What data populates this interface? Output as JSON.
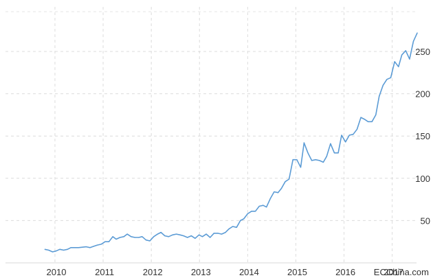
{
  "chart_data": {
    "type": "line",
    "title": "",
    "xlabel": "",
    "ylabel": "",
    "xlim": [
      2009.25,
      2017.5
    ],
    "ylim": [
      0,
      285
    ],
    "grid": true,
    "x_ticks": [
      "2010",
      "2011",
      "2012",
      "2013",
      "2014",
      "2015",
      "2016",
      "2017"
    ],
    "y_ticks": [
      50,
      100,
      150,
      200,
      250
    ],
    "series": [
      {
        "color": "#5b9bd5",
        "points": [
          [
            2009.29,
            16
          ],
          [
            2009.37,
            15
          ],
          [
            2009.45,
            13
          ],
          [
            2009.52,
            14
          ],
          [
            2009.6,
            16
          ],
          [
            2009.68,
            15
          ],
          [
            2009.76,
            16
          ],
          [
            2009.83,
            18
          ],
          [
            2009.91,
            18
          ],
          [
            2009.99,
            18
          ],
          [
            2010.07,
            18.5
          ],
          [
            2010.15,
            19
          ],
          [
            2010.23,
            18
          ],
          [
            2010.3,
            19.5
          ],
          [
            2010.38,
            21
          ],
          [
            2010.46,
            22
          ],
          [
            2010.54,
            25
          ],
          [
            2010.62,
            25
          ],
          [
            2010.7,
            31
          ],
          [
            2010.77,
            28
          ],
          [
            2010.85,
            30
          ],
          [
            2010.93,
            31
          ],
          [
            2011.0,
            34
          ],
          [
            2011.08,
            31
          ],
          [
            2011.16,
            30
          ],
          [
            2011.24,
            30
          ],
          [
            2011.31,
            31
          ],
          [
            2011.39,
            27
          ],
          [
            2011.47,
            26
          ],
          [
            2011.55,
            31
          ],
          [
            2011.63,
            34
          ],
          [
            2011.7,
            36
          ],
          [
            2011.78,
            32
          ],
          [
            2011.86,
            31
          ],
          [
            2011.94,
            33
          ],
          [
            2012.02,
            34
          ],
          [
            2012.1,
            33
          ],
          [
            2012.17,
            32
          ],
          [
            2012.25,
            30
          ],
          [
            2012.33,
            32
          ],
          [
            2012.41,
            29
          ],
          [
            2012.49,
            33
          ],
          [
            2012.56,
            31
          ],
          [
            2012.64,
            34
          ],
          [
            2012.72,
            30
          ],
          [
            2012.8,
            35
          ],
          [
            2012.88,
            35
          ],
          [
            2012.96,
            34
          ],
          [
            2013.04,
            36
          ],
          [
            2013.11,
            40
          ],
          [
            2013.19,
            43
          ],
          [
            2013.27,
            42
          ],
          [
            2013.35,
            50
          ],
          [
            2013.42,
            52
          ],
          [
            2013.5,
            58
          ],
          [
            2013.58,
            61
          ],
          [
            2013.66,
            61
          ],
          [
            2013.74,
            67
          ],
          [
            2013.82,
            68
          ],
          [
            2013.89,
            66
          ],
          [
            2013.97,
            76
          ],
          [
            2014.05,
            84
          ],
          [
            2014.13,
            83
          ],
          [
            2014.2,
            88
          ],
          [
            2014.28,
            96
          ],
          [
            2014.36,
            99
          ],
          [
            2014.44,
            122
          ],
          [
            2014.52,
            122
          ],
          [
            2014.6,
            113
          ],
          [
            2014.67,
            142
          ],
          [
            2014.75,
            130
          ],
          [
            2014.83,
            121
          ],
          [
            2014.91,
            122
          ],
          [
            2014.99,
            121
          ],
          [
            2015.07,
            119
          ],
          [
            2015.14,
            126
          ],
          [
            2015.22,
            141
          ],
          [
            2015.3,
            130
          ],
          [
            2015.38,
            130
          ],
          [
            2015.45,
            151
          ],
          [
            2015.53,
            143
          ],
          [
            2015.61,
            151
          ],
          [
            2015.69,
            152
          ],
          [
            2015.77,
            158
          ],
          [
            2015.85,
            172
          ],
          [
            2015.92,
            170
          ],
          [
            2016.0,
            167
          ],
          [
            2016.08,
            167
          ],
          [
            2016.16,
            175
          ],
          [
            2016.23,
            197
          ],
          [
            2016.31,
            210
          ],
          [
            2016.39,
            217
          ],
          [
            2016.47,
            219
          ],
          [
            2016.55,
            238
          ],
          [
            2016.63,
            232
          ],
          [
            2016.7,
            246
          ],
          [
            2016.78,
            251
          ],
          [
            2016.86,
            241
          ],
          [
            2016.94,
            262
          ],
          [
            2017.02,
            272
          ]
        ]
      }
    ]
  },
  "watermark": "ECChina.com"
}
